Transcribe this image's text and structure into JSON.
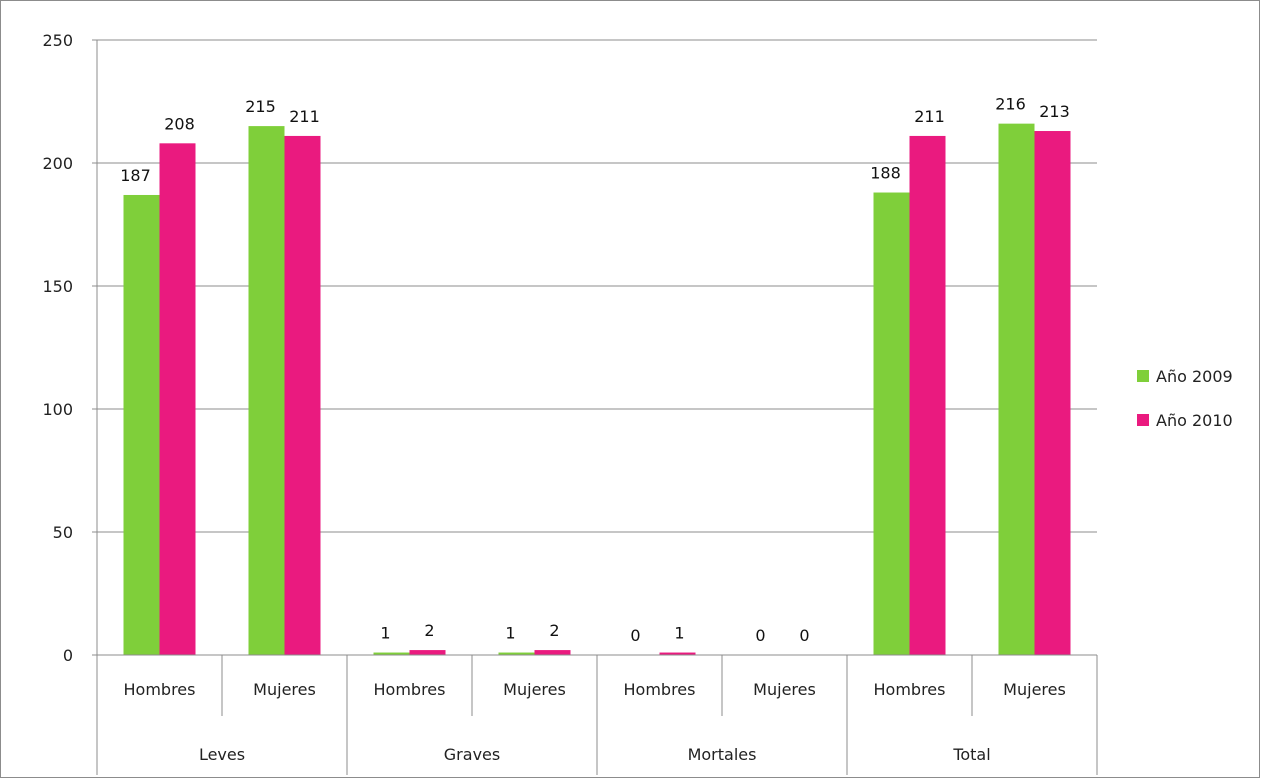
{
  "chart_data": {
    "type": "bar",
    "groups": [
      "Leves",
      "Graves",
      "Mortales",
      "Total"
    ],
    "subcategories": [
      "Hombres",
      "Mujeres"
    ],
    "categories": [
      {
        "group": "Leves",
        "label": "Hombres"
      },
      {
        "group": "Leves",
        "label": "Mujeres"
      },
      {
        "group": "Graves",
        "label": "Hombres"
      },
      {
        "group": "Graves",
        "label": "Mujeres"
      },
      {
        "group": "Mortales",
        "label": "Hombres"
      },
      {
        "group": "Mortales",
        "label": "Mujeres"
      },
      {
        "group": "Total",
        "label": "Hombres"
      },
      {
        "group": "Total",
        "label": "Mujeres"
      }
    ],
    "series": [
      {
        "name": "Año 2009",
        "color": "#7fcf3a",
        "values": [
          187,
          215,
          1,
          1,
          0,
          0,
          188,
          216
        ]
      },
      {
        "name": "Año 2010",
        "color": "#ea1a7f",
        "values": [
          208,
          211,
          2,
          2,
          1,
          0,
          211,
          213
        ]
      }
    ],
    "ylim": [
      0,
      250
    ],
    "yticks": [
      0,
      50,
      100,
      150,
      200,
      250
    ],
    "grid": true,
    "legend_position": "right",
    "title": "",
    "xlabel": "",
    "ylabel": ""
  }
}
